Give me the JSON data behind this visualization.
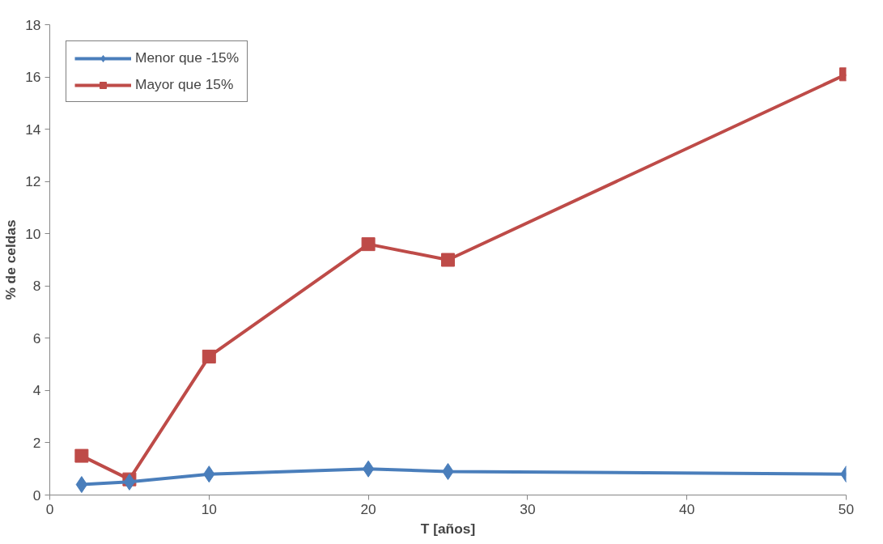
{
  "chart_data": {
    "type": "line",
    "xlabel": "T [años]",
    "ylabel": "% de celdas",
    "x": [
      2,
      5,
      10,
      20,
      25,
      50
    ],
    "series": [
      {
        "name": "Menor que -15%",
        "color": "#4a7ebb",
        "marker": "diamond",
        "values": [
          0.4,
          0.5,
          0.8,
          1.0,
          0.9,
          0.8
        ]
      },
      {
        "name": "Mayor que 15%",
        "color": "#be4b48",
        "marker": "square",
        "values": [
          1.5,
          0.6,
          5.3,
          9.6,
          9.0,
          16.1
        ]
      }
    ],
    "xlim": [
      0,
      50
    ],
    "xticks": [
      0,
      10,
      20,
      30,
      40,
      50
    ],
    "ylim": [
      0,
      18
    ],
    "yticks": [
      0,
      2,
      4,
      6,
      8,
      10,
      12,
      14,
      16,
      18
    ],
    "grid": false,
    "legend": "top left",
    "line_style": "solid"
  }
}
